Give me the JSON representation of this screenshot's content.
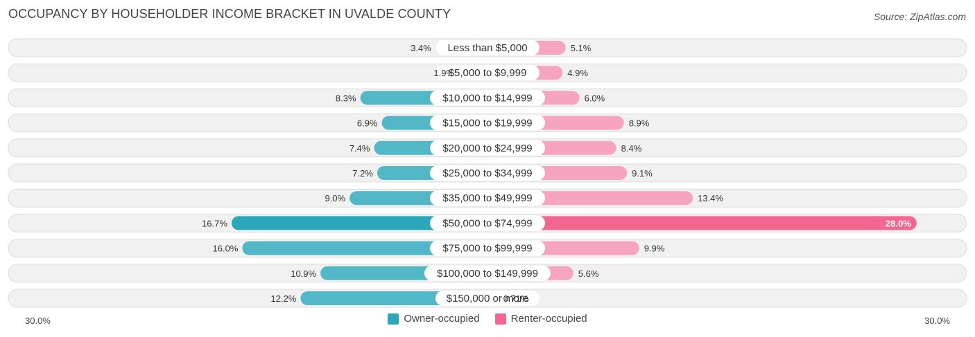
{
  "title": "OCCUPANCY BY HOUSEHOLDER INCOME BRACKET IN UVALDE COUNTY",
  "source": "Source: ZipAtlas.com",
  "colors": {
    "owner": "#52b8c8",
    "owner_strong": "#2aa8b9",
    "renter": "#f7a4c0",
    "renter_strong": "#f2668f"
  },
  "legend": {
    "owner_label": "Owner-occupied",
    "renter_label": "Renter-occupied"
  },
  "axis": {
    "left_label": "30.0%",
    "right_label": "30.0%"
  },
  "chart_data": {
    "type": "bar",
    "orientation": "diverging-horizontal",
    "categories": [
      "Less than $5,000",
      "$5,000 to $9,999",
      "$10,000 to $14,999",
      "$15,000 to $19,999",
      "$20,000 to $24,999",
      "$25,000 to $34,999",
      "$35,000 to $49,999",
      "$50,000 to $74,999",
      "$75,000 to $99,999",
      "$100,000 to $149,999",
      "$150,000 or more"
    ],
    "series": [
      {
        "name": "Owner-occupied",
        "values": [
          3.4,
          1.9,
          8.3,
          6.9,
          7.4,
          7.2,
          9.0,
          16.7,
          16.0,
          10.9,
          12.2
        ],
        "labels": [
          "3.4%",
          "1.9%",
          "8.3%",
          "6.9%",
          "7.4%",
          "7.2%",
          "9.0%",
          "16.7%",
          "16.0%",
          "10.9%",
          "12.2%"
        ]
      },
      {
        "name": "Renter-occupied",
        "values": [
          5.1,
          4.9,
          6.0,
          8.9,
          8.4,
          9.1,
          13.4,
          28.0,
          9.9,
          5.6,
          0.71
        ],
        "labels": [
          "5.1%",
          "4.9%",
          "6.0%",
          "8.9%",
          "8.4%",
          "9.1%",
          "13.4%",
          "28.0%",
          "9.9%",
          "5.6%",
          "0.71%"
        ]
      }
    ],
    "xlim": [
      -30,
      30
    ],
    "highlight_index": 7
  }
}
